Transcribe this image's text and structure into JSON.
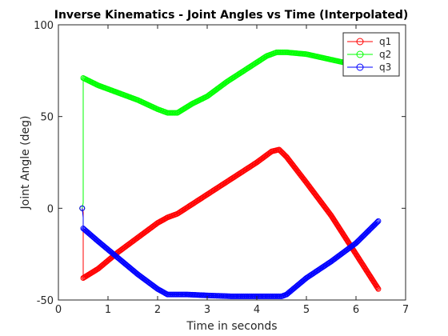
{
  "chart_data": {
    "type": "line",
    "title": "Inverse Kinematics - Joint Angles vs Time (Interpolated)",
    "xlabel": "Time in seconds",
    "ylabel": "Joint Angle (deg)",
    "xlim": [
      0,
      7
    ],
    "ylim": [
      -50,
      100
    ],
    "xticks": [
      0,
      1,
      2,
      3,
      4,
      5,
      6,
      7
    ],
    "yticks": [
      -50,
      0,
      50,
      100
    ],
    "grid": false,
    "legend_position": "top-right",
    "marker": "circle",
    "series": [
      {
        "name": "q1",
        "color": "#ff0000",
        "x": [
          0.48,
          0.5,
          0.5,
          0.8,
          1.2,
          1.6,
          2.0,
          2.2,
          2.4,
          2.8,
          3.2,
          3.6,
          4.0,
          4.3,
          4.45,
          4.6,
          5.0,
          5.5,
          6.0,
          6.45
        ],
        "y": [
          0,
          -2,
          -38,
          -33,
          -24,
          -16,
          -8,
          -5,
          -3,
          4,
          11,
          18,
          25,
          31,
          32,
          28,
          14,
          -4,
          -25,
          -44
        ]
      },
      {
        "name": "q2",
        "color": "#00ff00",
        "x": [
          0.48,
          0.5,
          0.5,
          0.8,
          1.2,
          1.6,
          2.0,
          2.2,
          2.4,
          2.7,
          3.0,
          3.4,
          3.8,
          4.2,
          4.4,
          4.6,
          5.0,
          5.5,
          6.0,
          6.45
        ],
        "y": [
          0,
          3,
          71,
          67,
          63,
          59,
          54,
          52,
          52,
          57,
          61,
          69,
          76,
          83,
          85,
          85,
          84,
          81,
          78,
          74
        ]
      },
      {
        "name": "q3",
        "color": "#0000ff",
        "x": [
          0.48,
          0.5,
          0.5,
          0.8,
          1.2,
          1.6,
          2.0,
          2.2,
          2.6,
          3.0,
          3.5,
          4.0,
          4.5,
          4.6,
          5.0,
          5.5,
          6.0,
          6.45
        ],
        "y": [
          0,
          -5,
          -11,
          -18,
          -27,
          -36,
          -44,
          -47,
          -47,
          -47.5,
          -48,
          -48,
          -48,
          -47,
          -38,
          -29,
          -19,
          -7
        ]
      }
    ]
  }
}
